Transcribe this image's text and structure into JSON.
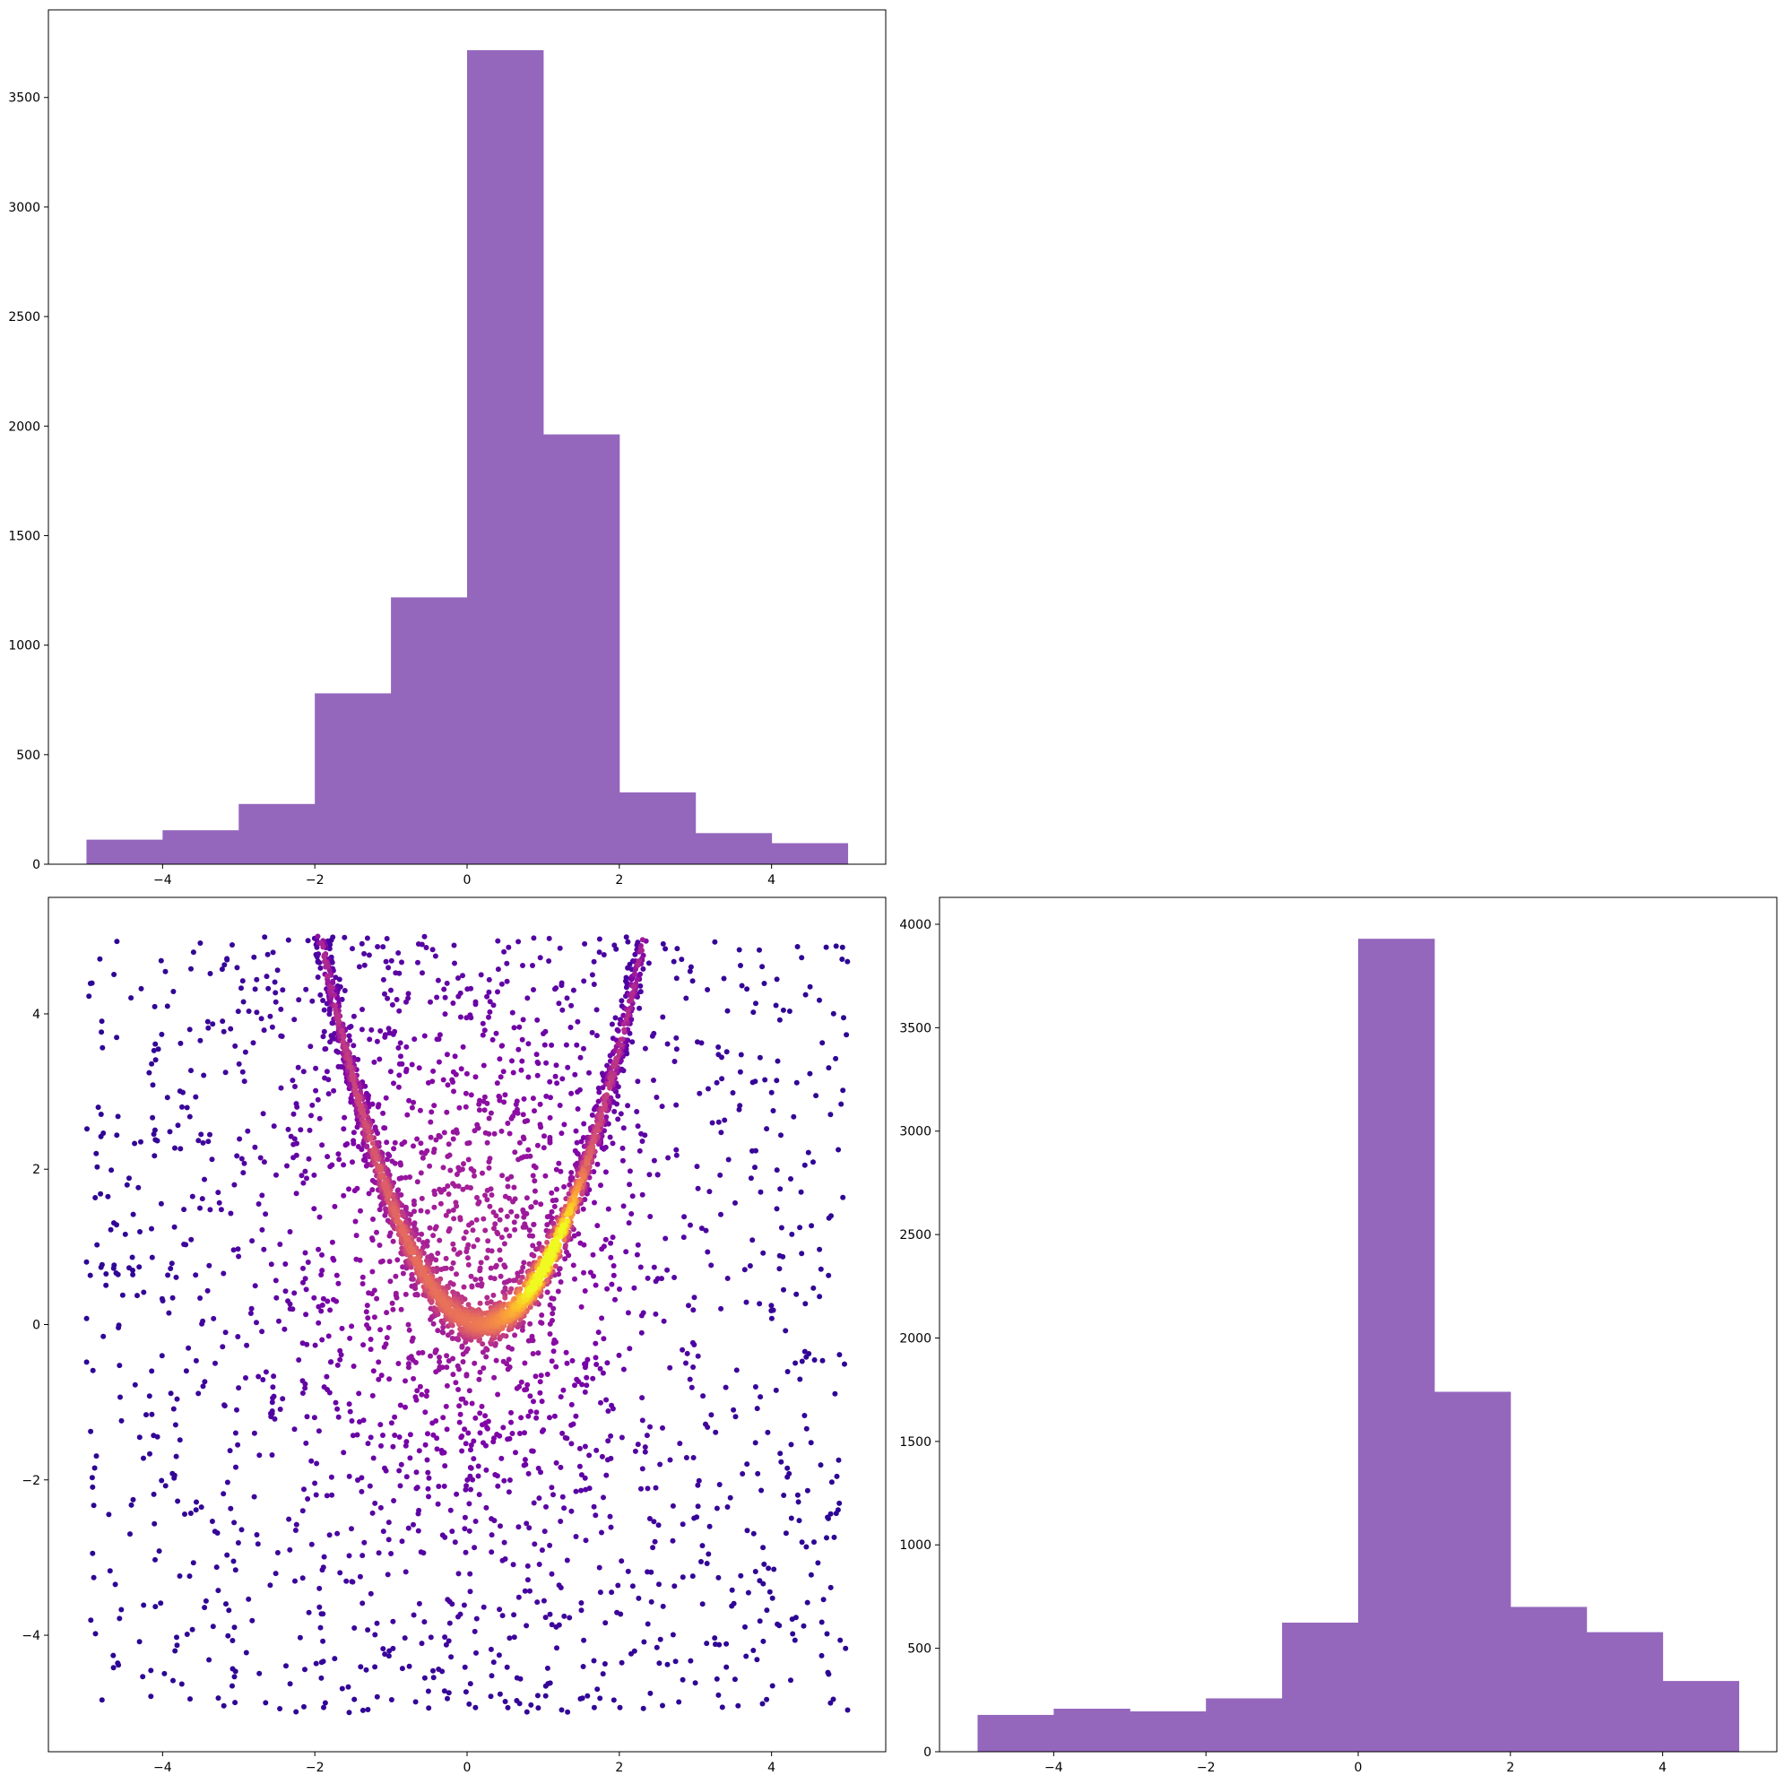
{
  "figure": {
    "layout": "corner plot, 2x2 grid, upper-right panel empty",
    "colors": {
      "hist_bar": "#9467bd",
      "axes": "#000000",
      "background": "#ffffff"
    },
    "colormap": "plasma"
  },
  "chart_data": [
    {
      "panel": "upper-left",
      "type": "bar",
      "subtype": "histogram",
      "bin_edges": [
        -5,
        -4,
        -3,
        -2,
        -1,
        0,
        1,
        2,
        3,
        4,
        5
      ],
      "values": [
        112,
        155,
        275,
        780,
        1218,
        3716,
        1962,
        328,
        142,
        96
      ],
      "xlim": [
        -5.5,
        5.5
      ],
      "ylim": [
        0,
        3900
      ],
      "xticks": [
        -4,
        -2,
        0,
        2,
        4
      ],
      "xtick_labels": [
        "−4",
        "−2",
        "0",
        "2",
        "4"
      ],
      "yticks": [
        0,
        500,
        1000,
        1500,
        2000,
        2500,
        3000,
        3500
      ],
      "ytick_labels": [
        "0",
        "500",
        "1000",
        "1500",
        "2000",
        "2500",
        "3000",
        "3500"
      ],
      "color": "#9467bd",
      "grid": false
    },
    {
      "panel": "lower-left",
      "type": "scatter",
      "description": "x vs y density-colored scatter: uniform background over [-5,5]x[-5,5] plus a dense parabola-shaped ridge y ≈ x² with minimum near (0.2, 0); color encodes point density (plasma colormap, purple = sparse, yellow = dense)",
      "ridge_curve": {
        "form": "y = a*(x - x0)^2",
        "a": 1.1,
        "x0": 0.2,
        "x_range": [
          -2.0,
          2.3
        ]
      },
      "background_points_approx": 1400,
      "ridge_points_approx": 2000,
      "xlim": [
        -5.5,
        5.5
      ],
      "ylim": [
        -5.5,
        5.5
      ],
      "xticks": [
        -4,
        -2,
        0,
        2,
        4
      ],
      "xtick_labels": [
        "−4",
        "−2",
        "0",
        "2",
        "4"
      ],
      "yticks": [
        -4,
        -2,
        0,
        2,
        4
      ],
      "ytick_labels": [
        "−4",
        "−2",
        "0",
        "2",
        "4"
      ],
      "colormap": "plasma",
      "grid": false
    },
    {
      "panel": "lower-right",
      "type": "bar",
      "subtype": "histogram",
      "bin_edges": [
        -5,
        -4,
        -3,
        -2,
        -1,
        0,
        1,
        2,
        3,
        4,
        5
      ],
      "values": [
        178,
        208,
        195,
        258,
        624,
        3930,
        1740,
        700,
        578,
        342
      ],
      "xlim": [
        -5.5,
        5.5
      ],
      "ylim": [
        0,
        4130
      ],
      "xticks": [
        -4,
        -2,
        0,
        2,
        4
      ],
      "xtick_labels": [
        "−4",
        "−2",
        "0",
        "2",
        "4"
      ],
      "yticks": [
        0,
        500,
        1000,
        1500,
        2000,
        2500,
        3000,
        3500,
        4000
      ],
      "ytick_labels": [
        "0",
        "500",
        "1000",
        "1500",
        "2000",
        "2500",
        "3000",
        "3500",
        "4000"
      ],
      "color": "#9467bd",
      "grid": false
    }
  ]
}
